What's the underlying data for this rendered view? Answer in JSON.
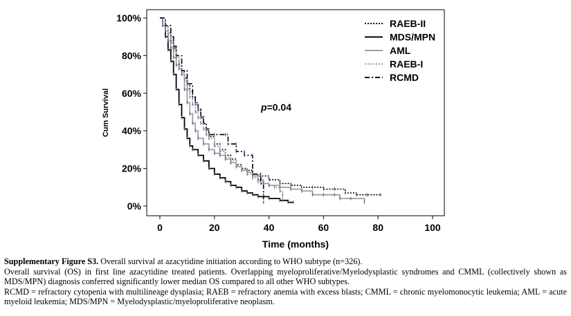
{
  "chart_data": {
    "type": "line",
    "subtype": "kaplan-meier",
    "xlabel": "Time (months)",
    "ylabel": "Cum Survival",
    "x_ticks": [
      "0",
      "20",
      "40",
      "60",
      "80",
      "100"
    ],
    "y_ticks": [
      "0%",
      "20%",
      "40%",
      "60%",
      "80%",
      "100%"
    ],
    "xlim": [
      0,
      100
    ],
    "ylim": [
      0,
      100
    ],
    "annotation": {
      "prefix": "p",
      "suffix": "=0.04"
    },
    "legend_position": "top-right",
    "series": [
      {
        "name": "RAEB-II",
        "style": "dotted",
        "color": "#000000",
        "points": [
          [
            0,
            100
          ],
          [
            1,
            98
          ],
          [
            2,
            96
          ],
          [
            3,
            92
          ],
          [
            4,
            88
          ],
          [
            5,
            84
          ],
          [
            6,
            80
          ],
          [
            7,
            76
          ],
          [
            8,
            72
          ],
          [
            9,
            68
          ],
          [
            10,
            64
          ],
          [
            11,
            61
          ],
          [
            12,
            58
          ],
          [
            13,
            54
          ],
          [
            14,
            51
          ],
          [
            15,
            47
          ],
          [
            16,
            44
          ],
          [
            17,
            40
          ],
          [
            18,
            37
          ],
          [
            20,
            33
          ],
          [
            22,
            30
          ],
          [
            24,
            27
          ],
          [
            26,
            25
          ],
          [
            28,
            22
          ],
          [
            30,
            20
          ],
          [
            32,
            19
          ],
          [
            34,
            17
          ],
          [
            36,
            16
          ],
          [
            40,
            14
          ],
          [
            44,
            12
          ],
          [
            48,
            11
          ],
          [
            52,
            10
          ],
          [
            56,
            10
          ],
          [
            60,
            9
          ],
          [
            64,
            9
          ],
          [
            68,
            7
          ],
          [
            72,
            6
          ],
          [
            76,
            6
          ],
          [
            81,
            6
          ]
        ]
      },
      {
        "name": "MDS/MPN",
        "style": "solid",
        "color": "#000000",
        "points": [
          [
            0,
            100
          ],
          [
            1,
            96
          ],
          [
            2,
            90
          ],
          [
            3,
            83
          ],
          [
            4,
            77
          ],
          [
            5,
            70
          ],
          [
            6,
            62
          ],
          [
            7,
            54
          ],
          [
            8,
            47
          ],
          [
            9,
            41
          ],
          [
            10,
            36
          ],
          [
            11,
            32
          ],
          [
            12,
            30
          ],
          [
            14,
            27
          ],
          [
            16,
            24
          ],
          [
            18,
            20
          ],
          [
            20,
            17
          ],
          [
            22,
            15
          ],
          [
            24,
            13
          ],
          [
            26,
            11
          ],
          [
            28,
            10
          ],
          [
            30,
            8
          ],
          [
            32,
            7
          ],
          [
            34,
            6
          ],
          [
            36,
            5
          ],
          [
            40,
            4
          ],
          [
            44,
            3
          ],
          [
            47,
            2
          ],
          [
            49,
            2
          ]
        ]
      },
      {
        "name": "AML",
        "style": "solid",
        "color": "#a0a0a0",
        "points": [
          [
            0,
            100
          ],
          [
            1,
            96
          ],
          [
            2,
            93
          ],
          [
            3,
            88
          ],
          [
            4,
            84
          ],
          [
            5,
            79
          ],
          [
            6,
            75
          ],
          [
            7,
            73
          ],
          [
            8,
            70
          ],
          [
            9,
            62
          ],
          [
            10,
            55
          ],
          [
            11,
            49
          ],
          [
            12,
            44
          ],
          [
            13,
            40
          ],
          [
            14,
            36
          ],
          [
            16,
            33
          ],
          [
            18,
            30
          ],
          [
            20,
            28
          ],
          [
            22,
            27
          ],
          [
            24,
            25
          ],
          [
            26,
            23
          ],
          [
            28,
            21
          ],
          [
            30,
            19
          ],
          [
            32,
            18
          ],
          [
            34,
            16
          ],
          [
            36,
            14
          ],
          [
            38,
            12
          ],
          [
            40,
            11
          ],
          [
            44,
            10
          ],
          [
            48,
            9
          ],
          [
            52,
            8
          ],
          [
            56,
            6
          ],
          [
            60,
            6
          ],
          [
            64,
            6
          ],
          [
            66,
            4
          ],
          [
            70,
            4
          ],
          [
            75,
            2
          ]
        ]
      },
      {
        "name": "RAEB-I",
        "style": "dotted",
        "color": "#999999",
        "points": [
          [
            0,
            100
          ],
          [
            1,
            98
          ],
          [
            2,
            95
          ],
          [
            3,
            91
          ],
          [
            4,
            87
          ],
          [
            5,
            83
          ],
          [
            6,
            79
          ],
          [
            7,
            75
          ],
          [
            8,
            71
          ],
          [
            9,
            67
          ],
          [
            10,
            62
          ],
          [
            11,
            58
          ],
          [
            12,
            54
          ],
          [
            13,
            50
          ],
          [
            14,
            47
          ],
          [
            15,
            44
          ],
          [
            16,
            41
          ],
          [
            17,
            38
          ],
          [
            18,
            36
          ],
          [
            20,
            32
          ],
          [
            22,
            29
          ],
          [
            24,
            26
          ],
          [
            26,
            24
          ],
          [
            28,
            21
          ],
          [
            30,
            19
          ],
          [
            32,
            17
          ],
          [
            34,
            15
          ],
          [
            36,
            13
          ],
          [
            38,
            12
          ],
          [
            40,
            11
          ],
          [
            42,
            10
          ],
          [
            44,
            8
          ],
          [
            45,
            6
          ],
          [
            45,
            3
          ]
        ]
      },
      {
        "name": "RCMD",
        "style": "dash-dot",
        "color": "#000000",
        "points": [
          [
            0,
            100
          ],
          [
            2,
            96
          ],
          [
            4,
            90
          ],
          [
            5,
            85
          ],
          [
            6,
            80
          ],
          [
            8,
            72
          ],
          [
            10,
            65
          ],
          [
            12,
            58
          ],
          [
            13,
            55
          ],
          [
            14,
            52
          ],
          [
            15,
            48
          ],
          [
            16,
            44
          ],
          [
            17,
            41
          ],
          [
            18,
            38
          ],
          [
            20,
            38
          ],
          [
            24,
            38
          ],
          [
            25,
            33
          ],
          [
            28,
            33
          ],
          [
            28,
            29
          ],
          [
            31,
            29
          ],
          [
            31,
            27
          ],
          [
            34,
            27
          ],
          [
            34,
            17
          ],
          [
            37,
            17
          ],
          [
            37,
            12
          ],
          [
            38,
            12
          ],
          [
            38,
            6
          ],
          [
            38,
            2
          ]
        ]
      }
    ]
  },
  "caption": {
    "label": "Supplementary Figure S3.",
    "title": " Overall survival at azacytidine initiation according to WHO subtype (n=326).",
    "line2": "Overall survival (OS) in first line azacytidine treated patients. Overlapping myeloproliferative/Myelodysplastic syndromes and CMML (collectively shown as MDS/MPN) diagnosis conferred significantly lower median OS compared to all other WHO subtypes.",
    "line3": "RCMD = refractory cytopenia with multilineage dysplasia; RAEB = refractory anemia with excess blasts; CMML = chronic myelomonocytic leukemia; AML = acute myeloid leukemia; MDS/MPN = Myelodysplastic/myeloproliferative  neoplasm."
  }
}
